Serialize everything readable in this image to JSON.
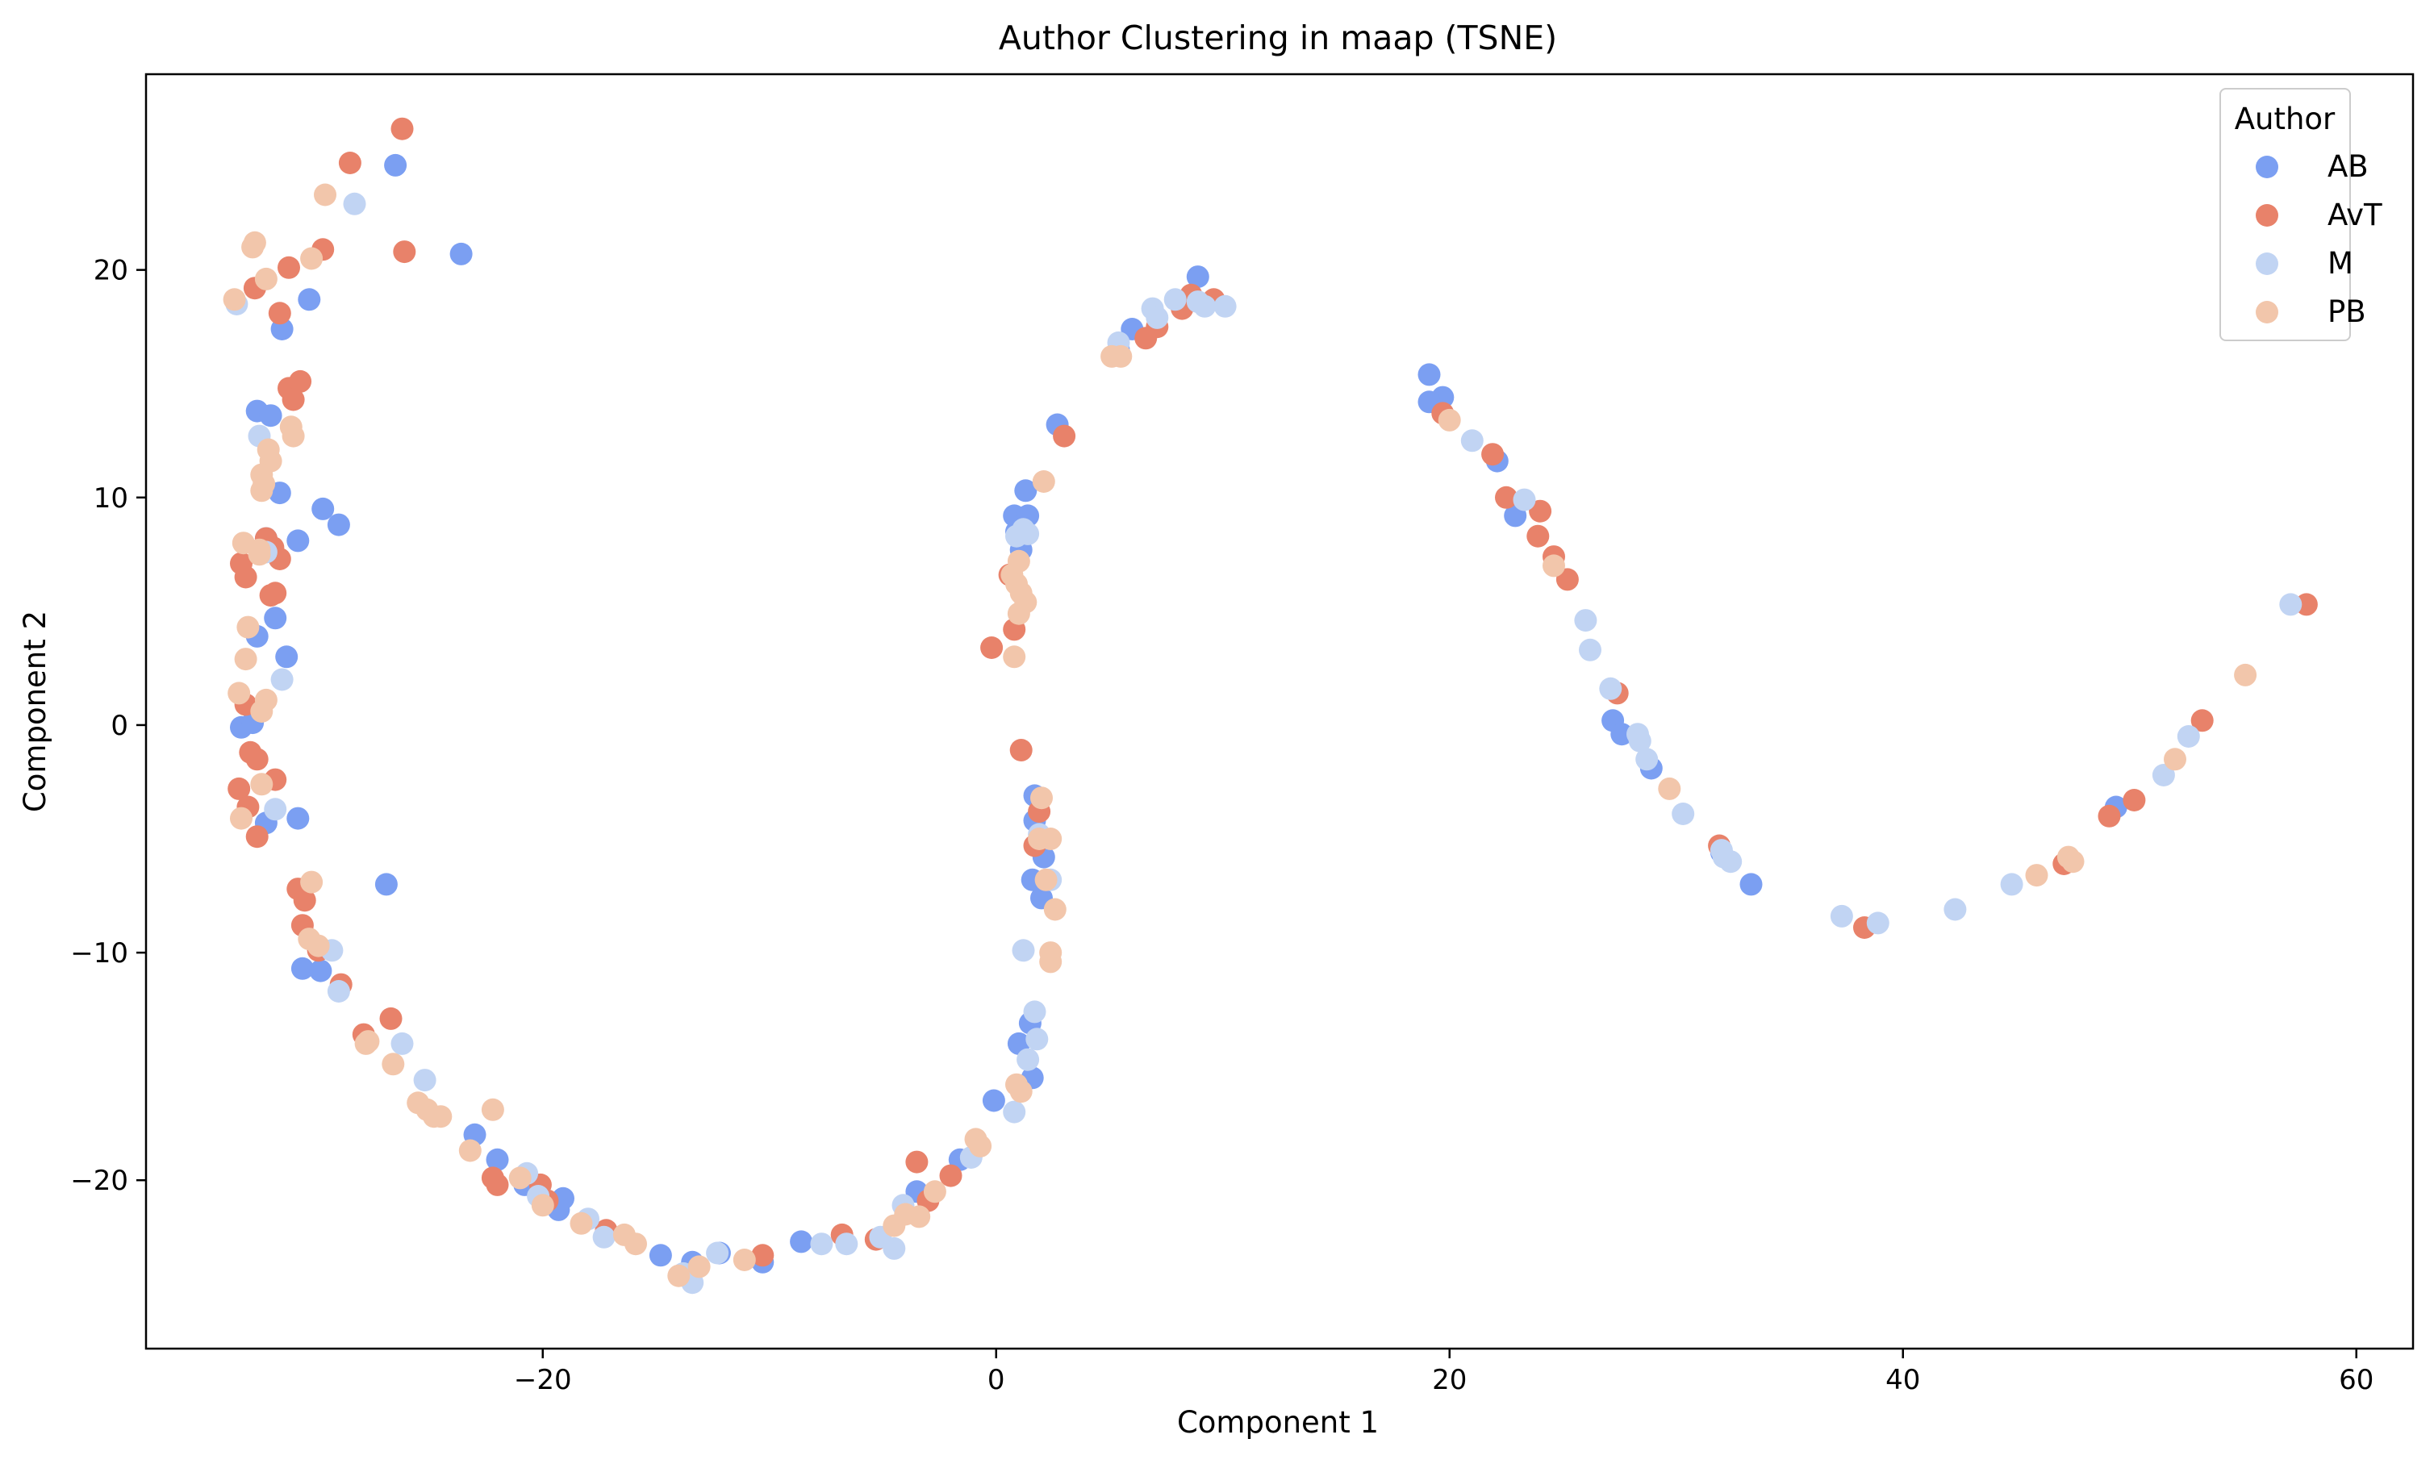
{
  "chart_data": {
    "type": "scatter",
    "title": "Author Clustering in maap (TSNE)",
    "xlabel": "Component 1",
    "ylabel": "Component 2",
    "xlim": [
      -37.5,
      62.5
    ],
    "ylim": [
      -27.4,
      28.6
    ],
    "xticks": [
      -20,
      0,
      20,
      40,
      60
    ],
    "yticks": [
      -20,
      -10,
      0,
      10,
      20
    ],
    "xtick_labels": [
      "−20",
      "0",
      "20",
      "40",
      "60"
    ],
    "ytick_labels": [
      "−20",
      "−10",
      "0",
      "10",
      "20"
    ],
    "grid": false,
    "legend": {
      "title": "Author",
      "placement": "top-right"
    },
    "series": [
      {
        "name": "AB",
        "color": "#7b9ff2",
        "points": [
          [
            -26.5,
            24.6
          ],
          [
            -23.6,
            20.7
          ],
          [
            -30.3,
            18.7
          ],
          [
            -31.5,
            17.4
          ],
          [
            -32.6,
            13.8
          ],
          [
            -32.0,
            13.6
          ],
          [
            -31.6,
            10.2
          ],
          [
            -29.7,
            9.5
          ],
          [
            -29.0,
            8.8
          ],
          [
            -32.2,
            8.2
          ],
          [
            -30.8,
            8.1
          ],
          [
            -32.6,
            3.9
          ],
          [
            -31.8,
            4.7
          ],
          [
            -31.3,
            3.0
          ],
          [
            -33.3,
            -0.1
          ],
          [
            -32.8,
            0.1
          ],
          [
            -32.2,
            -4.3
          ],
          [
            -30.8,
            -4.1
          ],
          [
            -26.9,
            -7.0
          ],
          [
            -30.6,
            -10.7
          ],
          [
            -29.8,
            -10.8
          ],
          [
            -23.0,
            -18.0
          ],
          [
            -22.0,
            -19.1
          ],
          [
            -20.8,
            -20.2
          ],
          [
            -19.1,
            -20.8
          ],
          [
            -19.3,
            -21.3
          ],
          [
            -14.8,
            -23.3
          ],
          [
            -13.4,
            -23.6
          ],
          [
            -12.2,
            -23.2
          ],
          [
            -10.3,
            -23.6
          ],
          [
            -8.6,
            -22.7
          ],
          [
            -3.5,
            -20.5
          ],
          [
            -1.6,
            -19.1
          ],
          [
            -0.1,
            -16.5
          ],
          [
            1.0,
            -14.0
          ],
          [
            1.6,
            -15.5
          ],
          [
            1.5,
            -13.1
          ],
          [
            1.6,
            -6.8
          ],
          [
            2.0,
            -7.6
          ],
          [
            2.1,
            -5.8
          ],
          [
            1.7,
            -4.2
          ],
          [
            1.7,
            -3.1
          ],
          [
            0.8,
            9.2
          ],
          [
            1.4,
            9.2
          ],
          [
            1.3,
            10.3
          ],
          [
            0.9,
            8.5
          ],
          [
            1.1,
            7.7
          ],
          [
            2.7,
            13.2
          ],
          [
            5.4,
            16.5
          ],
          [
            6.0,
            17.4
          ],
          [
            8.9,
            19.7
          ],
          [
            19.1,
            15.4
          ],
          [
            19.7,
            14.4
          ],
          [
            19.1,
            14.2
          ],
          [
            22.1,
            11.6
          ],
          [
            22.9,
            9.2
          ],
          [
            27.2,
            0.2
          ],
          [
            27.6,
            -0.4
          ],
          [
            28.9,
            -1.9
          ],
          [
            32.0,
            -5.6
          ],
          [
            33.3,
            -7.0
          ],
          [
            49.4,
            -3.6
          ]
        ]
      },
      {
        "name": "AvT",
        "color": "#e8826a",
        "points": [
          [
            -26.2,
            26.2
          ],
          [
            -28.5,
            24.7
          ],
          [
            -26.1,
            20.8
          ],
          [
            -29.7,
            20.9
          ],
          [
            -31.2,
            20.1
          ],
          [
            -32.7,
            19.2
          ],
          [
            -31.6,
            18.1
          ],
          [
            -31.2,
            14.8
          ],
          [
            -30.7,
            15.1
          ],
          [
            -31.0,
            14.3
          ],
          [
            -32.2,
            8.2
          ],
          [
            -31.9,
            7.8
          ],
          [
            -31.6,
            7.3
          ],
          [
            -33.3,
            7.1
          ],
          [
            -33.1,
            6.5
          ],
          [
            -32.0,
            5.7
          ],
          [
            -31.8,
            5.8
          ],
          [
            -33.1,
            0.9
          ],
          [
            -32.9,
            -1.2
          ],
          [
            -32.6,
            -1.5
          ],
          [
            -31.8,
            -2.4
          ],
          [
            -33.4,
            -2.8
          ],
          [
            -33.0,
            -3.6
          ],
          [
            -32.6,
            -4.9
          ],
          [
            -30.8,
            -7.2
          ],
          [
            -30.5,
            -7.7
          ],
          [
            -30.6,
            -8.8
          ],
          [
            -29.9,
            -9.9
          ],
          [
            -28.9,
            -11.4
          ],
          [
            -27.9,
            -13.6
          ],
          [
            -26.7,
            -12.9
          ],
          [
            -22.2,
            -19.9
          ],
          [
            -22.0,
            -20.2
          ],
          [
            -20.1,
            -20.2
          ],
          [
            -19.8,
            -20.9
          ],
          [
            -17.2,
            -22.2
          ],
          [
            -10.3,
            -23.3
          ],
          [
            -6.8,
            -22.4
          ],
          [
            -5.3,
            -22.6
          ],
          [
            -3.5,
            -19.2
          ],
          [
            -2.0,
            -19.8
          ],
          [
            -3.0,
            -20.9
          ],
          [
            -0.2,
            3.4
          ],
          [
            0.6,
            6.6
          ],
          [
            0.8,
            4.2
          ],
          [
            1.1,
            -1.1
          ],
          [
            1.7,
            -5.3
          ],
          [
            1.9,
            -3.8
          ],
          [
            3.0,
            12.7
          ],
          [
            6.6,
            17.0
          ],
          [
            7.1,
            17.5
          ],
          [
            8.2,
            18.3
          ],
          [
            8.6,
            18.9
          ],
          [
            9.6,
            18.7
          ],
          [
            19.7,
            13.7
          ],
          [
            21.9,
            11.9
          ],
          [
            22.5,
            10.0
          ],
          [
            23.9,
            8.3
          ],
          [
            24.0,
            9.4
          ],
          [
            24.6,
            7.4
          ],
          [
            25.2,
            6.4
          ],
          [
            27.4,
            1.4
          ],
          [
            31.9,
            -5.3
          ],
          [
            38.3,
            -8.9
          ],
          [
            47.1,
            -6.1
          ],
          [
            49.1,
            -4.0
          ],
          [
            50.2,
            -3.3
          ],
          [
            53.2,
            0.2
          ],
          [
            57.8,
            5.3
          ]
        ]
      },
      {
        "name": "M",
        "color": "#c1d4f3",
        "points": [
          [
            -28.3,
            22.9
          ],
          [
            -33.5,
            18.5
          ],
          [
            -32.5,
            12.7
          ],
          [
            -32.2,
            7.6
          ],
          [
            -31.5,
            2.0
          ],
          [
            -31.8,
            -3.7
          ],
          [
            -29.3,
            -9.9
          ],
          [
            -29.0,
            -11.7
          ],
          [
            -26.2,
            -14.0
          ],
          [
            -25.2,
            -15.6
          ],
          [
            -20.7,
            -19.7
          ],
          [
            -20.2,
            -20.7
          ],
          [
            -18.0,
            -21.7
          ],
          [
            -17.3,
            -22.5
          ],
          [
            -13.8,
            -24.1
          ],
          [
            -13.4,
            -24.5
          ],
          [
            -12.3,
            -23.2
          ],
          [
            -7.7,
            -22.8
          ],
          [
            -6.6,
            -22.8
          ],
          [
            -5.1,
            -22.5
          ],
          [
            -4.5,
            -23.0
          ],
          [
            -4.1,
            -21.1
          ],
          [
            -1.1,
            -19.0
          ],
          [
            0.8,
            -17.0
          ],
          [
            1.2,
            -9.9
          ],
          [
            1.4,
            -14.7
          ],
          [
            1.7,
            -12.6
          ],
          [
            1.8,
            -13.8
          ],
          [
            2.4,
            -6.8
          ],
          [
            1.9,
            -4.8
          ],
          [
            0.9,
            8.3
          ],
          [
            1.2,
            8.6
          ],
          [
            1.4,
            8.4
          ],
          [
            5.4,
            16.8
          ],
          [
            6.9,
            18.3
          ],
          [
            7.1,
            17.9
          ],
          [
            7.9,
            18.7
          ],
          [
            8.9,
            18.6
          ],
          [
            9.2,
            18.4
          ],
          [
            10.1,
            18.4
          ],
          [
            21.0,
            12.5
          ],
          [
            23.3,
            9.9
          ],
          [
            26.0,
            4.6
          ],
          [
            26.2,
            3.3
          ],
          [
            27.1,
            1.6
          ],
          [
            28.3,
            -0.4
          ],
          [
            28.4,
            -0.7
          ],
          [
            28.7,
            -1.5
          ],
          [
            30.3,
            -3.9
          ],
          [
            32.0,
            -5.5
          ],
          [
            32.1,
            -5.8
          ],
          [
            32.4,
            -6.0
          ],
          [
            37.3,
            -8.4
          ],
          [
            38.9,
            -8.7
          ],
          [
            42.3,
            -8.1
          ],
          [
            44.8,
            -7.0
          ],
          [
            51.5,
            -2.2
          ],
          [
            52.6,
            -0.5
          ],
          [
            57.1,
            5.3
          ]
        ]
      },
      {
        "name": "PB",
        "color": "#f2c6ab",
        "points": [
          [
            -29.6,
            23.3
          ],
          [
            -33.6,
            18.7
          ],
          [
            -32.8,
            21.0
          ],
          [
            -32.7,
            21.2
          ],
          [
            -32.2,
            19.6
          ],
          [
            -30.2,
            20.5
          ],
          [
            -31.1,
            13.1
          ],
          [
            -31.0,
            12.7
          ],
          [
            -32.1,
            12.1
          ],
          [
            -32.0,
            11.6
          ],
          [
            -32.4,
            11.0
          ],
          [
            -32.3,
            10.6
          ],
          [
            -32.4,
            10.3
          ],
          [
            -33.2,
            8.0
          ],
          [
            -32.5,
            7.7
          ],
          [
            -32.5,
            7.5
          ],
          [
            -33.0,
            4.3
          ],
          [
            -33.1,
            2.9
          ],
          [
            -33.4,
            1.4
          ],
          [
            -32.4,
            0.6
          ],
          [
            -32.2,
            1.1
          ],
          [
            -33.3,
            -4.1
          ],
          [
            -32.4,
            -2.6
          ],
          [
            -30.2,
            -6.9
          ],
          [
            -30.3,
            -9.4
          ],
          [
            -29.9,
            -9.7
          ],
          [
            -27.7,
            -13.9
          ],
          [
            -27.8,
            -14.0
          ],
          [
            -26.6,
            -14.9
          ],
          [
            -25.5,
            -16.6
          ],
          [
            -25.1,
            -16.9
          ],
          [
            -24.8,
            -17.2
          ],
          [
            -24.5,
            -17.2
          ],
          [
            -22.2,
            -16.9
          ],
          [
            -23.2,
            -18.7
          ],
          [
            -21.0,
            -19.9
          ],
          [
            -20.0,
            -21.1
          ],
          [
            -18.3,
            -21.9
          ],
          [
            -16.4,
            -22.4
          ],
          [
            -15.9,
            -22.8
          ],
          [
            -14.0,
            -24.2
          ],
          [
            -13.1,
            -23.8
          ],
          [
            -11.1,
            -23.5
          ],
          [
            -4.5,
            -22.0
          ],
          [
            -4.0,
            -21.5
          ],
          [
            -3.4,
            -21.6
          ],
          [
            -2.7,
            -20.5
          ],
          [
            -0.9,
            -18.2
          ],
          [
            -0.7,
            -18.5
          ],
          [
            0.9,
            -15.8
          ],
          [
            1.1,
            -16.1
          ],
          [
            0.7,
            6.6
          ],
          [
            0.9,
            6.2
          ],
          [
            1.0,
            7.2
          ],
          [
            1.3,
            5.4
          ],
          [
            1.0,
            4.9
          ],
          [
            1.1,
            5.8
          ],
          [
            0.8,
            3.0
          ],
          [
            2.1,
            10.7
          ],
          [
            1.9,
            -5.0
          ],
          [
            2.0,
            -3.2
          ],
          [
            2.2,
            -6.8
          ],
          [
            2.4,
            -5.0
          ],
          [
            2.4,
            -10.0
          ],
          [
            2.4,
            -10.4
          ],
          [
            2.6,
            -8.1
          ],
          [
            5.1,
            16.2
          ],
          [
            5.5,
            16.2
          ],
          [
            20.0,
            13.4
          ],
          [
            24.6,
            7.0
          ],
          [
            29.7,
            -2.8
          ],
          [
            45.9,
            -6.6
          ],
          [
            47.3,
            -5.8
          ],
          [
            47.5,
            -6.0
          ],
          [
            52.0,
            -1.5
          ],
          [
            55.1,
            2.2
          ]
        ]
      }
    ]
  }
}
